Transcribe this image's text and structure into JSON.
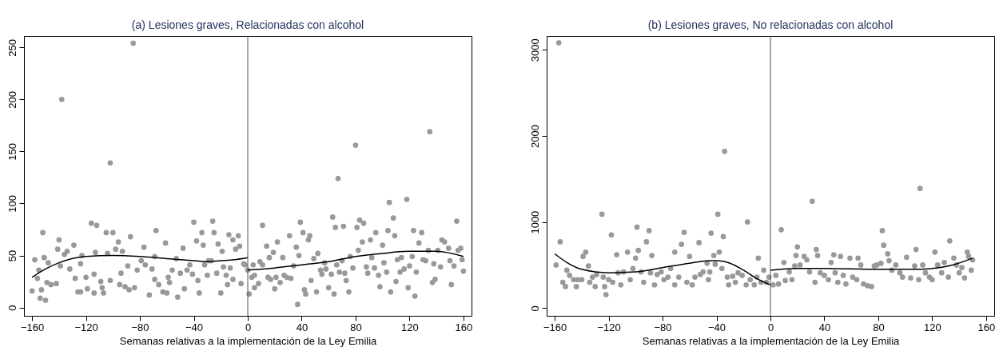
{
  "chart_data": [
    {
      "type": "scatter",
      "title": "(a) Lesiones graves, Relacionadas con alcohol",
      "xlabel": "Semanas relativas a la implementación de la Ley Emilia",
      "xlim": [
        -166,
        166
      ],
      "xticks": [
        -160,
        -120,
        -80,
        -40,
        0,
        40,
        80,
        120,
        160
      ],
      "ylim": [
        -8,
        261
      ],
      "yticks": [
        0,
        50,
        100,
        150,
        200,
        250
      ],
      "grid": false,
      "ref_lines": [
        {
          "axis": "x",
          "value": 0,
          "color": "#555555"
        }
      ],
      "series": [
        {
          "color": "#999999",
          "marker": "circle",
          "x": [
            -158,
            -160,
            -156,
            -155,
            -153,
            -154,
            -150,
            -152,
            -151,
            -149,
            -148,
            -146,
            -142,
            -140,
            -141,
            -139,
            -138,
            -136,
            -134,
            -132,
            -129,
            -128,
            -126,
            -124,
            -123,
            -124,
            -120,
            -119,
            -116,
            -114,
            -114,
            -112,
            -113,
            -109,
            -108,
            -107,
            -105,
            -104,
            -102,
            -102,
            -100,
            -98,
            -96,
            -94,
            -93,
            -95,
            -91,
            -88,
            -89,
            -87,
            -85,
            -84,
            -82,
            -79,
            -77,
            -76,
            -73,
            -71,
            -69,
            -68,
            -69,
            -66,
            -63,
            -61,
            -60,
            -59,
            -58,
            -56,
            -53,
            -52,
            -50,
            -48,
            -47,
            -45,
            -43,
            -41,
            -40,
            -38,
            -37,
            -36,
            -34,
            -33,
            -32,
            -30,
            -29,
            -27,
            -26,
            -25,
            -23,
            -22,
            -20,
            -19,
            -18,
            -15,
            -16,
            -14,
            -13,
            -11,
            -11,
            -9,
            -7,
            -6,
            -5,
            -3,
            -2,
            1,
            0,
            4,
            3,
            5,
            5,
            8,
            9,
            11,
            11,
            14,
            15,
            16,
            17,
            19,
            20,
            21,
            22,
            24,
            26,
            27,
            29,
            31,
            32,
            34,
            36,
            37,
            38,
            39,
            41,
            42,
            43,
            45,
            46,
            47,
            49,
            51,
            52,
            54,
            55,
            57,
            58,
            60,
            62,
            63,
            64,
            65,
            66,
            67,
            68,
            70,
            71,
            72,
            73,
            75,
            76,
            78,
            80,
            81,
            82,
            83,
            85,
            86,
            88,
            89,
            91,
            92,
            94,
            95,
            97,
            98,
            100,
            101,
            103,
            104,
            105,
            106,
            108,
            109,
            110,
            111,
            113,
            114,
            116,
            118,
            119,
            120,
            122,
            123,
            124,
            125,
            127,
            129,
            130,
            132,
            134,
            135,
            137,
            138,
            139,
            141,
            143,
            144,
            146,
            149,
            150,
            151,
            153,
            155,
            156,
            158,
            159,
            160
          ],
          "values": [
            46,
            16,
            28,
            36,
            17,
            9,
            7,
            72,
            48,
            24,
            43,
            22,
            23,
            65,
            56,
            40,
            200,
            51,
            54,
            37,
            60,
            28,
            15,
            15,
            50,
            42,
            29,
            18,
            81,
            14,
            32,
            79,
            53,
            25,
            19,
            14,
            72,
            52,
            26,
            139,
            72,
            56,
            63,
            33,
            54,
            22,
            20,
            17,
            40,
            68,
            254,
            19,
            36,
            45,
            58,
            41,
            12,
            37,
            49,
            74,
            27,
            22,
            15,
            62,
            14,
            29,
            24,
            36,
            47,
            10,
            33,
            57,
            18,
            36,
            41,
            32,
            82,
            64,
            26,
            14,
            72,
            60,
            41,
            31,
            45,
            45,
            83,
            72,
            33,
            61,
            14,
            54,
            39,
            22,
            31,
            70,
            38,
            27,
            65,
            56,
            69,
            59,
            23,
            42,
            41,
            13,
            36,
            41,
            29,
            31,
            19,
            23,
            44,
            79,
            41,
            59,
            29,
            48,
            27,
            53,
            18,
            29,
            63,
            24,
            48,
            31,
            29,
            69,
            28,
            40,
            58,
            3,
            50,
            82,
            72,
            17,
            13,
            65,
            69,
            26,
            47,
            15,
            52,
            36,
            32,
            43,
            37,
            19,
            32,
            87,
            13,
            77,
            41,
            124,
            34,
            45,
            78,
            33,
            26,
            15,
            49,
            38,
            156,
            77,
            55,
            84,
            63,
            81,
            39,
            33,
            65,
            48,
            38,
            72,
            31,
            20,
            60,
            43,
            34,
            74,
            101,
            15,
            86,
            69,
            25,
            46,
            34,
            48,
            37,
            104,
            19,
            40,
            49,
            74,
            11,
            34,
            62,
            72,
            46,
            45,
            55,
            169,
            24,
            42,
            27,
            55,
            39,
            65,
            63,
            57,
            45,
            22,
            40,
            83,
            55,
            57,
            46,
            35
          ]
        },
        {
          "type": "line",
          "color": "#000000",
          "x": [
            -160,
            -150,
            -140,
            -120,
            -100,
            -80,
            -60,
            -40,
            -30,
            -20,
            -10,
            0
          ],
          "values": [
            29,
            37,
            43,
            49,
            50,
            49,
            47,
            45,
            44,
            45,
            46,
            48
          ]
        },
        {
          "type": "line",
          "color": "#000000",
          "x": [
            0,
            20,
            40,
            60,
            80,
            100,
            120,
            140,
            160
          ],
          "values": [
            36,
            38,
            41,
            44,
            49,
            52,
            54,
            54,
            49
          ]
        }
      ]
    },
    {
      "type": "scatter",
      "title": "(b) Lesiones graves, No relacionadas con alcohol",
      "xlabel": "Semanas relativas a la implementación de la Ley Emilia",
      "xlim": [
        -166,
        166
      ],
      "xticks": [
        -160,
        -120,
        -80,
        -40,
        0,
        40,
        80,
        120,
        160
      ],
      "ylim": [
        -90,
        3160
      ],
      "yticks": [
        0,
        1000,
        2000,
        3000
      ],
      "grid": false,
      "ref_lines": [
        {
          "axis": "x",
          "value": 0,
          "color": "#555555"
        }
      ],
      "series": [
        {
          "color": "#999999",
          "marker": "circle",
          "x": [
            -159,
            -157,
            -156,
            -154,
            -152,
            -151,
            -149,
            -146,
            -144,
            -143,
            -140,
            -139,
            -137,
            -135,
            -134,
            -132,
            -130,
            -129,
            -125,
            -124,
            -123,
            -122,
            -120,
            -118,
            -117,
            -114,
            -113,
            -111,
            -109,
            -106,
            -104,
            -102,
            -100,
            -99,
            -98,
            -96,
            -94,
            -92,
            -90,
            -89,
            -88,
            -86,
            -84,
            -81,
            -79,
            -76,
            -74,
            -71,
            -71,
            -68,
            -66,
            -64,
            -62,
            -60,
            -58,
            -56,
            -53,
            -52,
            -50,
            -47,
            -46,
            -45,
            -44,
            -42,
            -41,
            -39,
            -38,
            -36,
            -35,
            -34,
            -32,
            -31,
            -28,
            -26,
            -24,
            -21,
            -18,
            -17,
            -15,
            -12,
            -10,
            -9,
            -7,
            -5,
            -3,
            -1,
            2,
            4,
            6,
            8,
            10,
            11,
            14,
            16,
            18,
            19,
            20,
            22,
            25,
            27,
            29,
            31,
            33,
            34,
            35,
            37,
            40,
            43,
            45,
            47,
            48,
            50,
            52,
            54,
            56,
            59,
            61,
            64,
            65,
            67,
            69,
            72,
            75,
            77,
            79,
            82,
            83,
            84,
            87,
            88,
            90,
            93,
            96,
            98,
            101,
            104,
            107,
            108,
            110,
            111,
            113,
            115,
            118,
            120,
            122,
            124,
            127,
            129,
            132,
            133,
            136,
            138,
            140,
            142,
            144,
            146,
            147,
            149,
            150
          ],
          "values": [
            500,
            3080,
            770,
            300,
            250,
            440,
            380,
            330,
            250,
            330,
            330,
            600,
            650,
            490,
            300,
            360,
            250,
            390,
            1090,
            360,
            250,
            155,
            330,
            850,
            300,
            620,
            410,
            270,
            420,
            650,
            330,
            460,
            580,
            940,
            670,
            420,
            300,
            770,
            900,
            410,
            610,
            270,
            390,
            420,
            330,
            360,
            460,
            270,
            650,
            360,
            740,
            880,
            300,
            600,
            270,
            360,
            760,
            390,
            420,
            520,
            330,
            420,
            870,
            610,
            510,
            1090,
            650,
            460,
            830,
            1820,
            360,
            270,
            370,
            300,
            410,
            380,
            270,
            1000,
            330,
            270,
            360,
            580,
            300,
            440,
            300,
            360,
            270,
            380,
            280,
            910,
            530,
            320,
            420,
            330,
            490,
            610,
            710,
            500,
            600,
            560,
            420,
            1240,
            300,
            680,
            610,
            410,
            380,
            330,
            530,
            620,
            410,
            300,
            600,
            380,
            280,
            580,
            360,
            330,
            580,
            500,
            280,
            260,
            250,
            490,
            500,
            520,
            900,
            730,
            630,
            550,
            440,
            500,
            410,
            360,
            590,
            350,
            490,
            680,
            330,
            1390,
            500,
            410,
            360,
            330,
            650,
            500,
            410,
            530,
            360,
            780,
            580,
            500,
            410,
            470,
            350,
            650,
            600,
            440,
            560
          ]
        },
        {
          "type": "line",
          "color": "#000000",
          "x": [
            -160,
            -150,
            -140,
            -120,
            -100,
            -80,
            -60,
            -45,
            -40,
            -30,
            -20,
            -10,
            0
          ],
          "values": [
            630,
            520,
            450,
            410,
            420,
            470,
            520,
            550,
            550,
            520,
            440,
            340,
            270
          ]
        },
        {
          "type": "line",
          "color": "#000000",
          "x": [
            0,
            20,
            40,
            80,
            110,
            120,
            135,
            150
          ],
          "values": [
            440,
            460,
            460,
            450,
            450,
            460,
            500,
            580
          ]
        }
      ]
    }
  ]
}
